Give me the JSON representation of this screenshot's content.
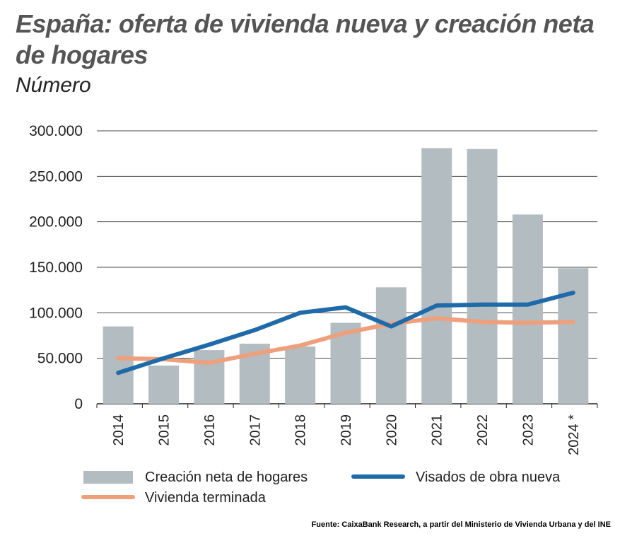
{
  "header": {
    "title": "España: oferta de vivienda nueva y creación neta de hogares",
    "subtitle": "Número"
  },
  "chart_data": {
    "type": "bar",
    "title": "España: oferta de vivienda nueva y creación neta de hogares",
    "subtitle": "Número",
    "xlabel": "",
    "ylabel": "",
    "ylim": [
      0,
      300000
    ],
    "y_ticks": [
      "0",
      "50.000",
      "100.000",
      "150.000",
      "200.000",
      "250.000",
      "300.000"
    ],
    "y_tick_values": [
      0,
      50000,
      100000,
      150000,
      200000,
      250000,
      300000
    ],
    "categories": [
      "2014",
      "2015",
      "2016",
      "2017",
      "2018",
      "2019",
      "2020",
      "2021",
      "2022",
      "2023",
      "2024 *"
    ],
    "series": [
      {
        "name": "Creación neta de hogares",
        "type": "bar",
        "color": "#b3bcc0",
        "values": [
          85000,
          42000,
          59000,
          66000,
          63000,
          89000,
          128000,
          281000,
          280000,
          208000,
          149000
        ]
      },
      {
        "name": "Visados de obra nueva",
        "type": "line",
        "color": "#1f6aa8",
        "values": [
          34000,
          50000,
          65000,
          81000,
          100000,
          106000,
          85000,
          108000,
          109000,
          109000,
          122000
        ]
      },
      {
        "name": "Vivienda terminada",
        "type": "line",
        "color": "#eea07c",
        "values": [
          50000,
          49000,
          45000,
          55000,
          64000,
          78000,
          88000,
          94000,
          90000,
          89000,
          90000
        ]
      }
    ],
    "grid": true,
    "legend": "bottom"
  },
  "source": "Fuente: CaixaBank Research, a partir del Ministerio de Vivienda Urbana y del INE"
}
